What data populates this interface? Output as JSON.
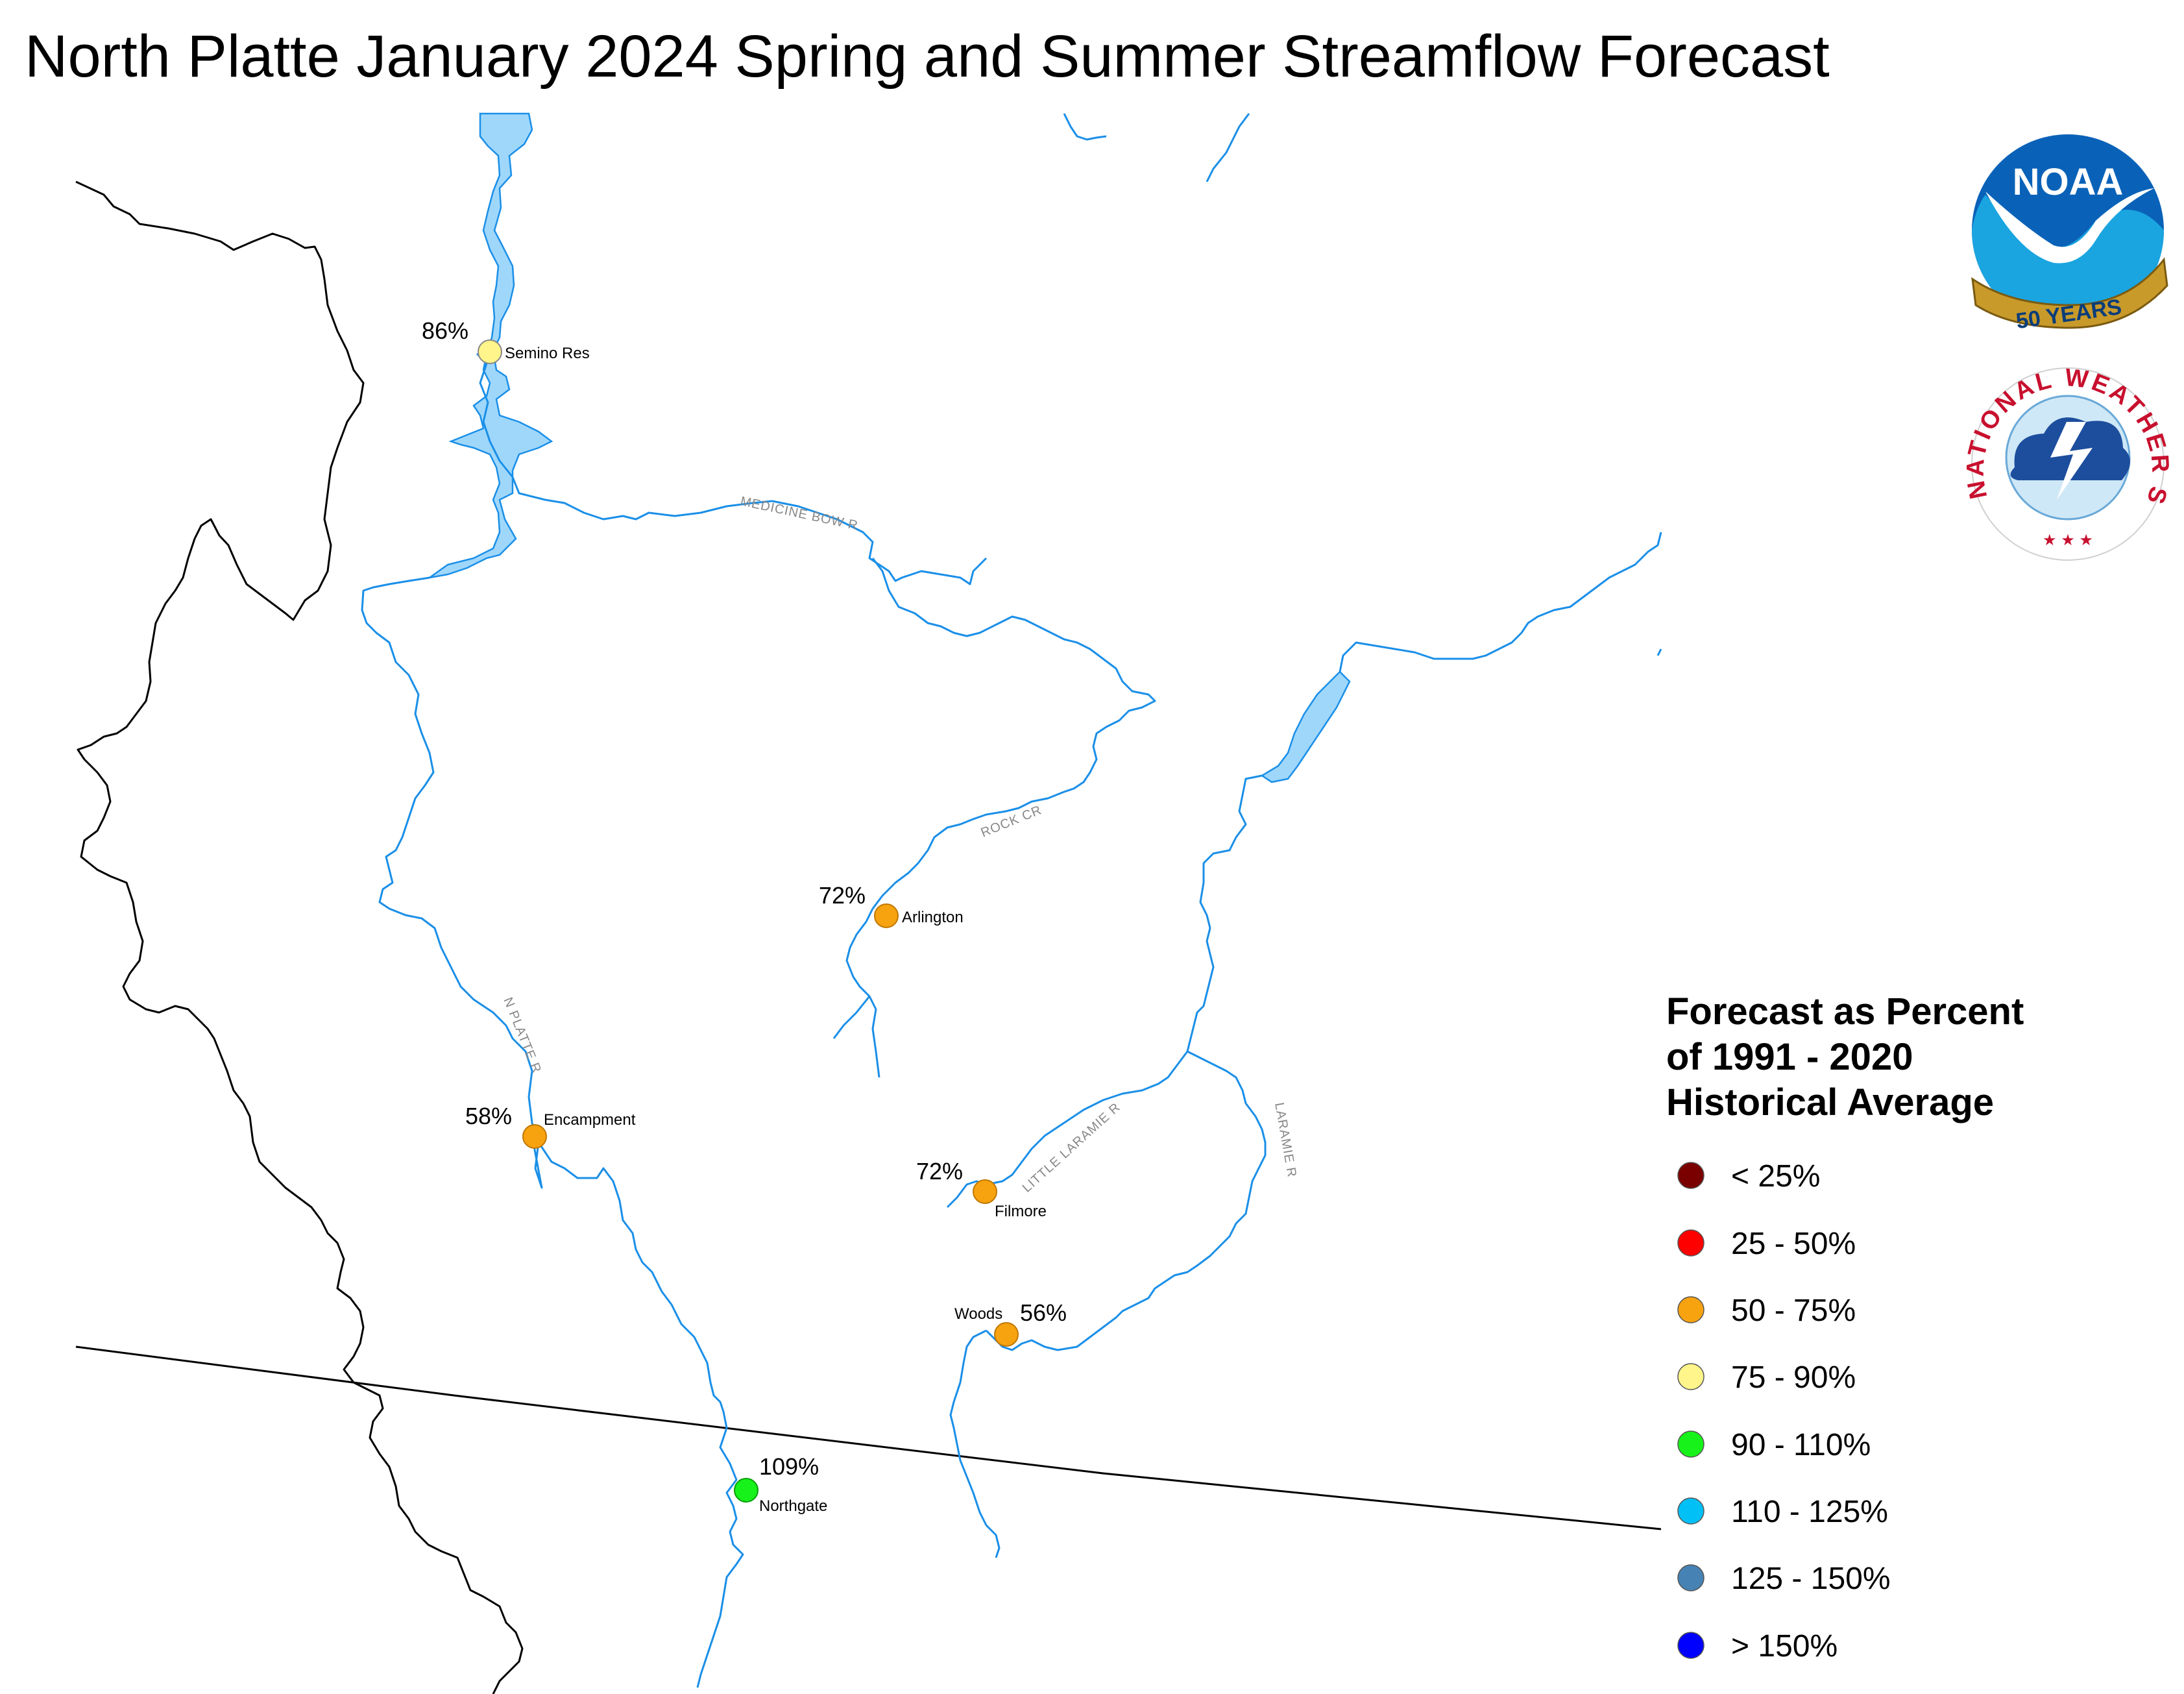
{
  "title": "North Platte January 2024 Spring and Summer Streamflow Forecast",
  "colors": {
    "river": "#1a8fe8",
    "lake": "#9fd7fb",
    "boundary": "#000000"
  },
  "stations": [
    {
      "name": "Semino Res",
      "percent": "86%",
      "category": "75 - 90%",
      "color": "#fff58a"
    },
    {
      "name": "Arlington",
      "percent": "72%",
      "category": "50 - 75%",
      "color": "#f7a20f"
    },
    {
      "name": "Encampment",
      "percent": "58%",
      "category": "50 - 75%",
      "color": "#f7a20f"
    },
    {
      "name": "Filmore",
      "percent": "72%",
      "category": "50 - 75%",
      "color": "#f7a20f"
    },
    {
      "name": "Woods",
      "percent": "56%",
      "category": "50 - 75%",
      "color": "#f7a20f"
    },
    {
      "name": "Northgate",
      "percent": "109%",
      "category": "90 - 110%",
      "color": "#17f21a"
    }
  ],
  "rivers": [
    {
      "label": "MEDICINE BOW R"
    },
    {
      "label": "ROCK CR"
    },
    {
      "label": "N PLATTE R"
    },
    {
      "label": "LITTLE LARAMIE R"
    },
    {
      "label": "LARAMIE R"
    }
  ],
  "legend": {
    "title_lines": [
      "Forecast as Percent",
      "of 1991 - 2020",
      "Historical Average"
    ],
    "items": [
      {
        "label": "< 25%",
        "color": "#7a0000"
      },
      {
        "label": "25 - 50%",
        "color": "#ff0000"
      },
      {
        "label": "50 - 75%",
        "color": "#f7a20f"
      },
      {
        "label": "75 - 90%",
        "color": "#fff58a"
      },
      {
        "label": "90 - 110%",
        "color": "#17f21a"
      },
      {
        "label": "110 - 125%",
        "color": "#00c0f5"
      },
      {
        "label": "125 - 150%",
        "color": "#4682b4"
      },
      {
        "label": "> 150%",
        "color": "#0000ff"
      }
    ]
  },
  "logos": {
    "noaa": {
      "wordmark": "NOAA",
      "ribbon": "50 YEARS"
    },
    "nws": {
      "ring_text": "NATIONAL WEATHER SERVICE"
    }
  }
}
